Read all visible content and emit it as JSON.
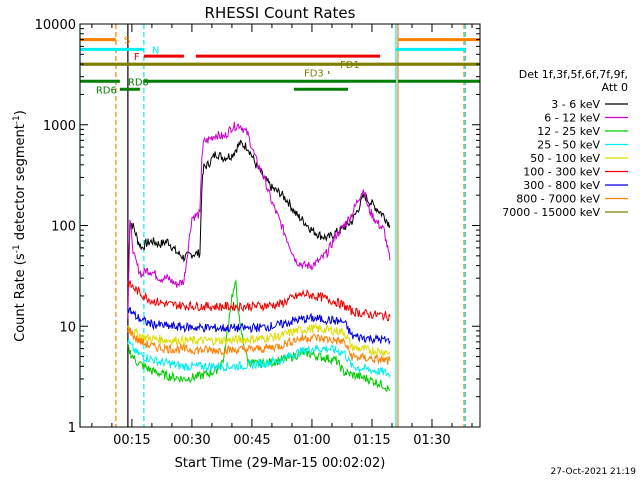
{
  "chart_data": {
    "type": "line",
    "title": "RHESSI Count Rates",
    "xlabel": "Start Time (29-Mar-15 00:02:02)",
    "ylabel": "Count Rate (s⁻¹ detector segment⁻¹)",
    "ylabel_parts": [
      "Count Rate (s",
      "-1",
      " detector segment",
      "-1",
      ")"
    ],
    "timestamp": "27-Oct-2021 21:19",
    "yscale": "log",
    "xlim": [
      "00:02:02",
      "01:42:00"
    ],
    "ylim": [
      1,
      10000
    ],
    "y_ticks": [
      1,
      10,
      100,
      1000,
      10000
    ],
    "y_tick_labels": [
      "1",
      "10",
      "100",
      "1000",
      "10000"
    ],
    "x_ticks": [
      "00:15",
      "00:30",
      "00:45",
      "01:00",
      "01:15",
      "01:30"
    ],
    "legend": {
      "placement": "right",
      "header": [
        "Det 1f,3f,5f,6f,7f,9f,",
        "Att 0"
      ],
      "entries": [
        {
          "label": "3 - 6 keV",
          "color": "#000000"
        },
        {
          "label": "6 - 12 keV",
          "color": "#cc00cc"
        },
        {
          "label": "12 - 25 keV",
          "color": "#00cc00"
        },
        {
          "label": "25 - 50 keV",
          "color": "#00eeee"
        },
        {
          "label": "50 - 100 keV",
          "color": "#dddd00"
        },
        {
          "label": "100 - 300 keV",
          "color": "#ee0000"
        },
        {
          "label": "300 - 800 keV",
          "color": "#0000dd"
        },
        {
          "label": "800 - 7000 keV",
          "color": "#ff7f00"
        },
        {
          "label": "7000 - 15000 keV",
          "color": "#7f7f00"
        }
      ]
    },
    "series": [
      {
        "name": "3 - 6 keV",
        "color": "#000000",
        "x": [
          "00:14:00",
          "00:14:30",
          "00:15:30",
          "00:16:30",
          "00:17:30",
          "00:18:30",
          "00:20:00",
          "00:22:00",
          "00:24:00",
          "00:26:00",
          "00:28:00",
          "00:30:00",
          "00:32:00",
          "00:32:30",
          "00:33:00",
          "00:34:00",
          "00:36:00",
          "00:38:00",
          "00:40:00",
          "00:42:00",
          "00:44:00",
          "00:46:00",
          "00:48:00",
          "00:50:00",
          "00:52:00",
          "00:54:00",
          "00:56:00",
          "00:58:00",
          "01:00:00",
          "01:02:00",
          "01:04:00",
          "01:06:00",
          "01:08:00",
          "01:10:00",
          "01:12:00",
          "01:13:00",
          "01:14:00",
          "01:16:00",
          "01:18:00",
          "01:19:30"
        ],
        "y": [
          18,
          110,
          95,
          70,
          60,
          66,
          70,
          65,
          70,
          55,
          48,
          52,
          53,
          250,
          380,
          400,
          520,
          470,
          500,
          650,
          600,
          400,
          300,
          235,
          210,
          175,
          130,
          110,
          90,
          80,
          75,
          85,
          95,
          110,
          160,
          200,
          180,
          150,
          125,
          100
        ]
      },
      {
        "name": "6 - 12 keV",
        "color": "#cc00cc",
        "x": [
          "00:14:00",
          "00:14:30",
          "00:15:30",
          "00:16:30",
          "00:17:30",
          "00:18:30",
          "00:20:00",
          "00:22:00",
          "00:24:00",
          "00:26:00",
          "00:28:00",
          "00:30:00",
          "00:32:00",
          "00:32:30",
          "00:33:00",
          "00:34:00",
          "00:36:00",
          "00:38:00",
          "00:40:00",
          "00:42:00",
          "00:44:00",
          "00:46:00",
          "00:48:00",
          "00:50:00",
          "00:52:00",
          "00:54:00",
          "00:56:00",
          "00:58:00",
          "01:00:00",
          "01:02:00",
          "01:04:00",
          "01:06:00",
          "01:08:00",
          "01:10:00",
          "01:12:00",
          "01:13:00",
          "01:14:00",
          "01:16:00",
          "01:18:00",
          "01:19:30"
        ],
        "y": [
          13,
          110,
          50,
          38,
          32,
          36,
          35,
          30,
          30,
          26,
          28,
          120,
          130,
          500,
          680,
          700,
          800,
          750,
          950,
          1000,
          800,
          450,
          300,
          170,
          110,
          70,
          45,
          40,
          40,
          45,
          55,
          80,
          100,
          130,
          200,
          230,
          150,
          110,
          90,
          45
        ]
      },
      {
        "name": "12 - 25 keV",
        "color": "#00cc00",
        "x": [
          "00:14:00",
          "00:16:00",
          "00:18:00",
          "00:20:00",
          "00:22:00",
          "00:24:00",
          "00:26:00",
          "00:28:00",
          "00:30:00",
          "00:32:00",
          "00:34:00",
          "00:36:00",
          "00:38:00",
          "00:40:00",
          "00:41:00",
          "00:42:00",
          "00:44:00",
          "00:46:00",
          "00:50:00",
          "00:54:00",
          "00:58:00",
          "01:02:00",
          "01:06:00",
          "01:08:00",
          "01:10:00",
          "01:14:00",
          "01:18:00",
          "01:19:30"
        ],
        "y": [
          6,
          4.5,
          4.0,
          3.6,
          3.4,
          3.2,
          3.1,
          3.0,
          3.1,
          3.2,
          3.4,
          3.6,
          4.8,
          20,
          26,
          10,
          4.5,
          4.2,
          4.4,
          4.8,
          5.5,
          5.0,
          4.6,
          3.5,
          3.3,
          3.0,
          2.6,
          2.3
        ]
      },
      {
        "name": "25 - 50 keV",
        "color": "#00eeee",
        "x": [
          "00:14:00",
          "00:16:00",
          "00:18:00",
          "00:20:00",
          "00:22:00",
          "00:24:00",
          "00:26:00",
          "00:28:00",
          "00:30:00",
          "00:32:00",
          "00:36:00",
          "00:40:00",
          "00:44:00",
          "00:48:00",
          "00:52:00",
          "00:56:00",
          "01:00:00",
          "01:04:00",
          "01:08:00",
          "01:10:00",
          "01:14:00",
          "01:18:00",
          "01:19:30"
        ],
        "y": [
          7,
          5.5,
          5.0,
          4.7,
          4.4,
          4.3,
          4.1,
          4.0,
          4.0,
          4.0,
          4.0,
          4.0,
          4.1,
          4.3,
          4.6,
          5.4,
          6.0,
          6.0,
          5.5,
          4.0,
          3.7,
          3.5,
          3.3
        ]
      },
      {
        "name": "50 - 100 keV",
        "color": "#dddd00",
        "x": [
          "00:14:00",
          "00:16:00",
          "00:18:00",
          "00:20:00",
          "00:24:00",
          "00:28:00",
          "00:32:00",
          "00:36:00",
          "00:40:00",
          "00:44:00",
          "00:48:00",
          "00:52:00",
          "00:56:00",
          "01:00:00",
          "01:04:00",
          "01:08:00",
          "01:10:00",
          "01:14:00",
          "01:18:00",
          "01:19:30"
        ],
        "y": [
          10,
          8.5,
          7.8,
          7.5,
          7.3,
          7.2,
          7.2,
          7.2,
          7.3,
          7.4,
          7.6,
          8.0,
          9.0,
          9.5,
          9.2,
          8.8,
          6.2,
          5.8,
          5.6,
          5.5
        ]
      },
      {
        "name": "100 - 300 keV",
        "color": "#ee0000",
        "x": [
          "00:14:00",
          "00:16:00",
          "00:18:00",
          "00:20:00",
          "00:24:00",
          "00:28:00",
          "00:32:00",
          "00:36:00",
          "00:40:00",
          "00:44:00",
          "00:48:00",
          "00:52:00",
          "00:55:00",
          "00:58:00",
          "01:02:00",
          "01:06:00",
          "01:08:00",
          "01:10:00",
          "01:14:00",
          "01:18:00",
          "01:19:30"
        ],
        "y": [
          27,
          23,
          20,
          18,
          16.5,
          16,
          15.8,
          15.7,
          15.7,
          15.8,
          16,
          16.5,
          19,
          21,
          19.5,
          17.5,
          16,
          14,
          13.2,
          12.8,
          12.5
        ]
      },
      {
        "name": "300 - 800 keV",
        "color": "#0000dd",
        "x": [
          "00:14:00",
          "00:16:00",
          "00:18:00",
          "00:20:00",
          "00:24:00",
          "00:28:00",
          "00:32:00",
          "00:36:00",
          "00:40:00",
          "00:44:00",
          "00:48:00",
          "00:52:00",
          "00:56:00",
          "01:00:00",
          "01:04:00",
          "01:08:00",
          "01:10:00",
          "01:14:00",
          "01:18:00",
          "01:19:30"
        ],
        "y": [
          15,
          12.5,
          11.2,
          10.5,
          10,
          9.8,
          9.7,
          9.6,
          9.6,
          9.6,
          9.8,
          10.3,
          11.5,
          12,
          11.6,
          11,
          8,
          7.6,
          7.3,
          7.1
        ]
      },
      {
        "name": "800 - 7000 keV",
        "color": "#ff7f00",
        "x": [
          "00:14:00",
          "00:16:00",
          "00:18:00",
          "00:20:00",
          "00:24:00",
          "00:28:00",
          "00:32:00",
          "00:36:00",
          "00:40:00",
          "00:44:00",
          "00:48:00",
          "00:52:00",
          "00:56:00",
          "01:00:00",
          "01:04:00",
          "01:08:00",
          "01:10:00",
          "01:14:00",
          "01:18:00",
          "01:19:30"
        ],
        "y": [
          9.5,
          7.5,
          6.8,
          6.3,
          6.0,
          5.9,
          5.8,
          5.8,
          5.8,
          5.9,
          6.0,
          6.4,
          7.4,
          7.8,
          7.4,
          7.0,
          5.0,
          4.8,
          4.6,
          4.5
        ]
      },
      {
        "name": "7000 - 15000 keV",
        "color": "#7f7f00",
        "x": [
          "00:02:02",
          "01:42:00"
        ],
        "y": [
          3900,
          3900
        ]
      }
    ],
    "vertical_markers": [
      {
        "x": "00:02:02",
        "color": "#00eeee",
        "style": "solid"
      },
      {
        "x": "00:11:00",
        "color": "#ff7f00",
        "style": "dashed"
      },
      {
        "x": "00:14:00",
        "color": "#000000",
        "style": "solid"
      },
      {
        "x": "00:18:00",
        "color": "#00eeee",
        "style": "dashed"
      },
      {
        "x": "01:21:00",
        "color": "#00eeee",
        "style": "solid"
      },
      {
        "x": "01:21:30",
        "color": "#ff7f00",
        "style": "solid"
      },
      {
        "x": "01:38:00",
        "color": "#ff7f00",
        "style": "dashed"
      },
      {
        "x": "01:38:20",
        "color": "#00eeee",
        "style": "dashed"
      }
    ],
    "flag_bars": [
      {
        "label": "S",
        "color": "#ff7f00",
        "y": 7000,
        "segments": [
          [
            "00:02:02",
            "00:11:00"
          ],
          [
            "01:21:30",
            "01:42:00"
          ]
        ],
        "label_x": "00:13:00"
      },
      {
        "label": "N",
        "color": "#00eeee",
        "y": 5600,
        "segments": [
          [
            "00:02:02",
            "00:18:00"
          ],
          [
            "01:21:00",
            "01:38:20"
          ]
        ],
        "label_x": "00:20:00"
      },
      {
        "label": "F",
        "color": "#ee0000",
        "y": 4800,
        "segments": [
          [
            "00:18:00",
            "00:28:00"
          ],
          [
            "00:31:00",
            "01:17:00"
          ]
        ],
        "label_x": "00:15:30"
      },
      {
        "label": "FD1",
        "color": "#7f7f00",
        "y": 4000,
        "segments": [
          [
            "00:02:02",
            "01:42:00"
          ]
        ],
        "label_x": "01:07:00"
      },
      {
        "label": "FD3",
        "color": "#7f7f00",
        "y": 3300,
        "segments": [
          [
            "01:04:00",
            "01:04:20"
          ]
        ],
        "label_x": "00:58:00"
      },
      {
        "label": "RD0",
        "color": "#007f00",
        "y": 2700,
        "segments": [
          [
            "00:02:02",
            "00:12:00"
          ],
          [
            "00:18:00",
            "01:21:00"
          ],
          [
            "01:21:30",
            "01:42:00"
          ]
        ],
        "label_x": "00:14:00"
      },
      {
        "label": "RD6",
        "color": "#007f00",
        "y": 2250,
        "segments": [
          [
            "00:12:00",
            "00:17:00"
          ],
          [
            "00:55:30",
            "01:09:00"
          ]
        ],
        "label_x": "00:06:00"
      }
    ]
  }
}
